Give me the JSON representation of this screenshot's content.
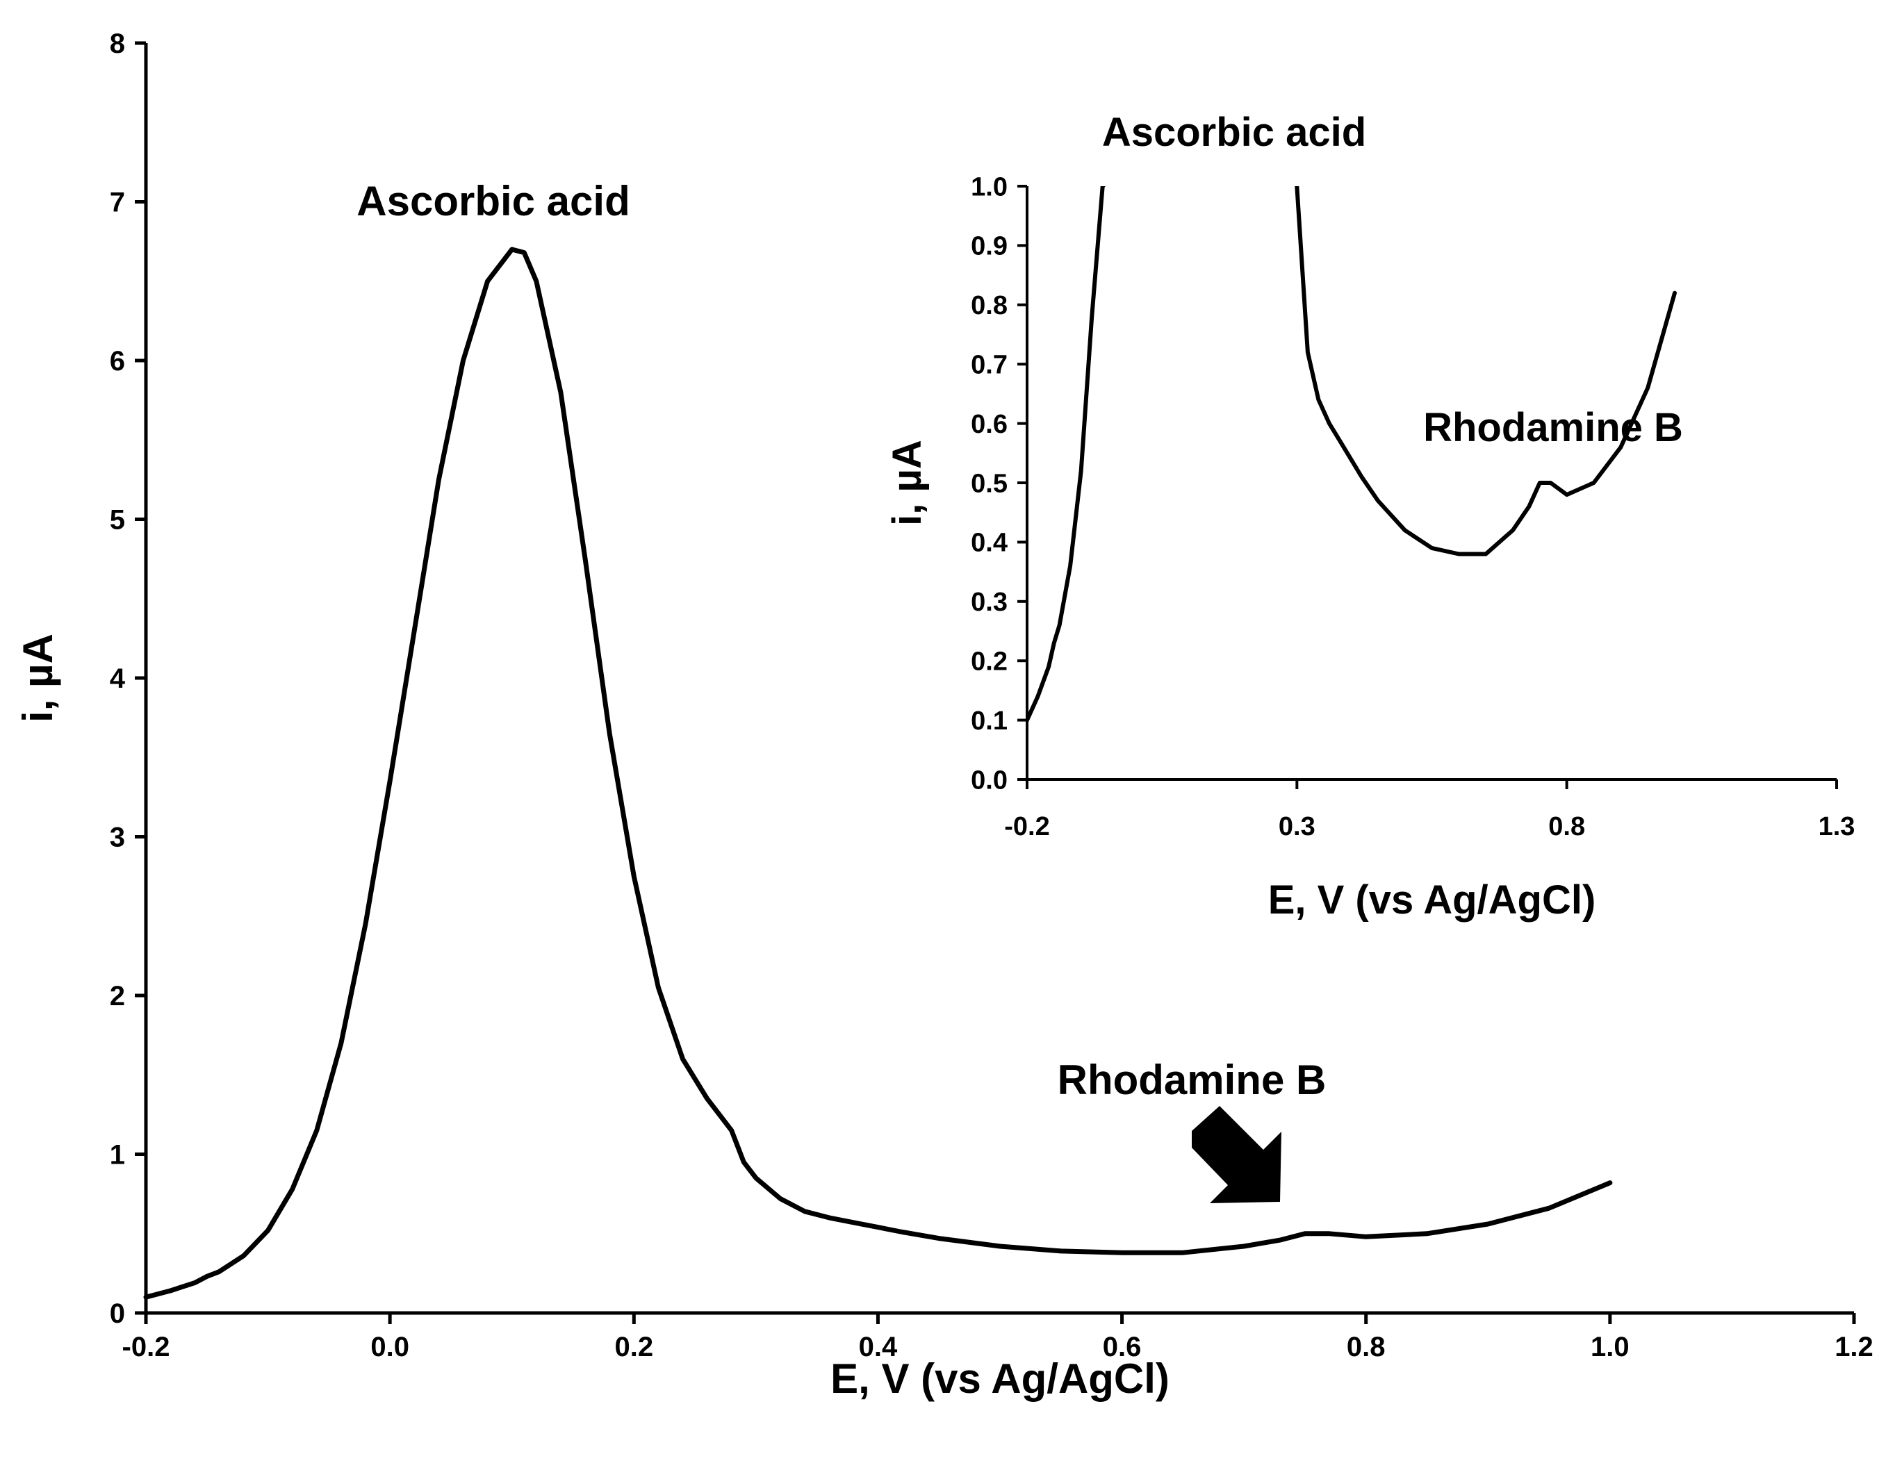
{
  "chart_data": [
    {
      "type": "line",
      "xlabel": "E, V (vs Ag/AgCl)",
      "ylabel": "i, µA",
      "xlim": [
        -0.2,
        1.2
      ],
      "ylim": [
        0,
        8
      ],
      "xticks": [
        -0.2,
        0.0,
        0.2,
        0.4,
        0.6,
        0.8,
        1.0,
        1.2
      ],
      "xtick_labels": [
        "-0.2",
        "0.0",
        "0.2",
        "0.4",
        "0.6",
        "0.8",
        "1.0",
        "1.2"
      ],
      "yticks": [
        0,
        1,
        2,
        3,
        4,
        5,
        6,
        7,
        8
      ],
      "ytick_labels": [
        "0",
        "1",
        "2",
        "3",
        "4",
        "5",
        "6",
        "7",
        "8"
      ],
      "grid": false,
      "color": "#000000",
      "series": [
        {
          "x": [
            -0.2,
            -0.18,
            -0.16,
            -0.15,
            -0.14,
            -0.12,
            -0.1,
            -0.08,
            -0.06,
            -0.04,
            -0.02,
            0.0,
            0.02,
            0.04,
            0.06,
            0.08,
            0.1,
            0.11,
            0.12,
            0.14,
            0.16,
            0.18,
            0.2,
            0.22,
            0.24,
            0.26,
            0.27,
            0.28,
            0.29,
            0.3,
            0.32,
            0.34,
            0.36,
            0.38,
            0.4,
            0.42,
            0.45,
            0.5,
            0.55,
            0.6,
            0.65,
            0.7,
            0.73,
            0.75,
            0.77,
            0.8,
            0.85,
            0.9,
            0.95,
            1.0
          ],
          "y": [
            0.1,
            0.14,
            0.19,
            0.23,
            0.26,
            0.36,
            0.52,
            0.78,
            1.15,
            1.7,
            2.45,
            3.35,
            4.3,
            5.25,
            6.0,
            6.5,
            6.7,
            6.68,
            6.5,
            5.8,
            4.75,
            3.65,
            2.75,
            2.05,
            1.6,
            1.35,
            1.25,
            1.15,
            0.95,
            0.85,
            0.72,
            0.64,
            0.6,
            0.57,
            0.54,
            0.51,
            0.47,
            0.42,
            0.39,
            0.38,
            0.38,
            0.42,
            0.46,
            0.5,
            0.5,
            0.48,
            0.5,
            0.56,
            0.66,
            0.82
          ]
        }
      ]
    },
    {
      "type": "line",
      "xlabel": "E, V (vs Ag/AgCl)",
      "ylabel": "i, µA",
      "xlim": [
        -0.2,
        1.3
      ],
      "ylim": [
        0,
        1.0
      ],
      "xticks": [
        -0.2,
        0.3,
        0.8,
        1.3
      ],
      "xtick_labels": [
        "-0.2",
        "0.3",
        "0.8",
        "1.3"
      ],
      "yticks": [
        0,
        0.1,
        0.2,
        0.3,
        0.4,
        0.5,
        0.6,
        0.7,
        0.8,
        0.9,
        1.0
      ],
      "ytick_labels": [
        "0.0",
        "0.1",
        "0.2",
        "0.3",
        "0.4",
        "0.5",
        "0.6",
        "0.7",
        "0.8",
        "0.9",
        "1.0"
      ],
      "grid": false,
      "color": "#000000",
      "series": [
        {
          "x": [
            -0.2,
            -0.18,
            -0.16,
            -0.15,
            -0.14,
            -0.12,
            -0.1,
            -0.08,
            -0.06,
            -0.05,
            -0.06,
            0.3,
            0.3,
            0.32,
            0.34,
            0.36,
            0.38,
            0.4,
            0.42,
            0.45,
            0.5,
            0.55,
            0.6,
            0.65,
            0.7,
            0.73,
            0.75,
            0.77,
            0.8,
            0.85,
            0.9,
            0.95,
            1.0
          ],
          "y": [
            0.1,
            0.14,
            0.19,
            0.23,
            0.26,
            0.36,
            0.52,
            0.78,
            1.0,
            1.3,
            1.0,
            1.3,
            1.0,
            0.72,
            0.64,
            0.6,
            0.57,
            0.54,
            0.51,
            0.47,
            0.42,
            0.39,
            0.38,
            0.38,
            0.42,
            0.46,
            0.5,
            0.5,
            0.48,
            0.5,
            0.56,
            0.66,
            0.82
          ]
        }
      ]
    }
  ],
  "annotations": {
    "main_peak": "Ascorbic acid",
    "main_second": "Rhodamine B",
    "inset_peak": "Ascorbic acid",
    "inset_second": "Rhodamine B"
  }
}
